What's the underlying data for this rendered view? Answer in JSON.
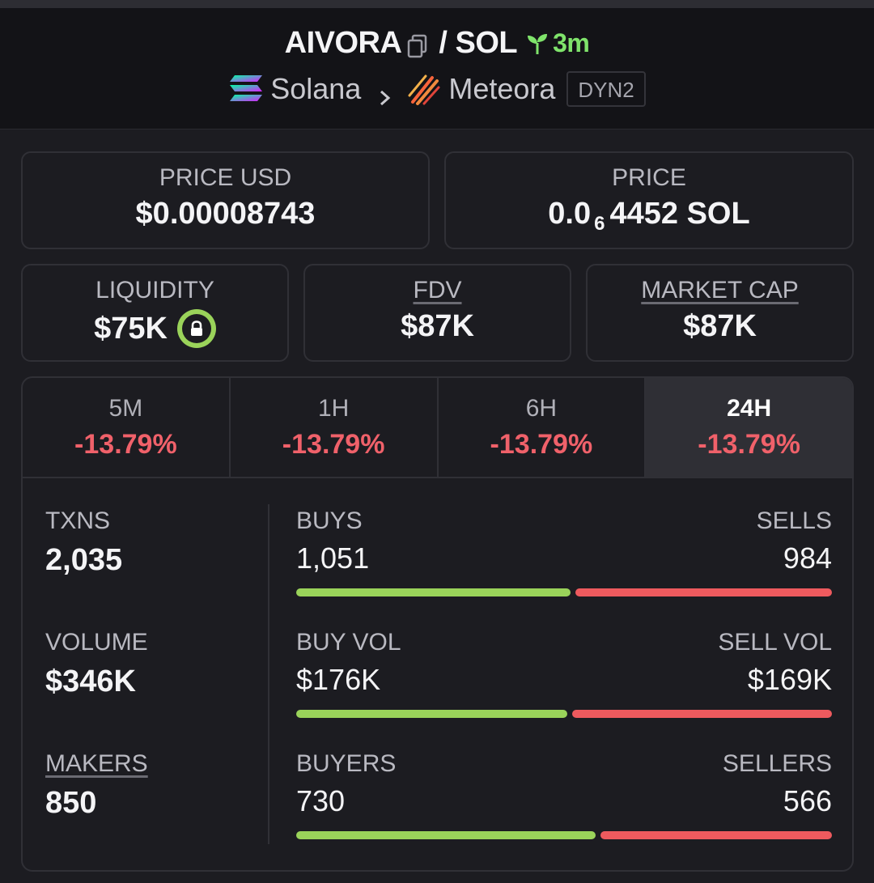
{
  "header": {
    "token": "AIVORA",
    "slash": "/",
    "quote": "SOL",
    "age": "3m",
    "chain": "Solana",
    "dex": "Meteora",
    "tag": "DYN2"
  },
  "price_usd": {
    "label": "PRICE USD",
    "value": "$0.00008743"
  },
  "price_native": {
    "label": "PRICE",
    "prefix": "0.0",
    "zeros": "6",
    "suffix": "4452 SOL"
  },
  "liquidity": {
    "label": "LIQUIDITY",
    "value": "$75K"
  },
  "fdv": {
    "label": "FDV",
    "value": "$87K"
  },
  "market_cap": {
    "label": "MARKET CAP",
    "value": "$87K"
  },
  "tabs": [
    {
      "label": "5M",
      "change": "-13.79%"
    },
    {
      "label": "1H",
      "change": "-13.79%"
    },
    {
      "label": "6H",
      "change": "-13.79%"
    },
    {
      "label": "24H",
      "change": "-13.79%",
      "active": true
    }
  ],
  "stats": {
    "txns": {
      "label": "TXNS",
      "value": "2,035"
    },
    "volume": {
      "label": "VOLUME",
      "value": "$346K"
    },
    "makers": {
      "label": "MAKERS",
      "value": "850"
    }
  },
  "pairs": {
    "txns": {
      "left_label": "BUYS",
      "right_label": "SELLS",
      "left_value": "1,051",
      "right_value": "984",
      "left_ratio": 0.5165
    },
    "volume": {
      "left_label": "BUY VOL",
      "right_label": "SELL VOL",
      "left_value": "$176K",
      "right_value": "$169K",
      "left_ratio": 0.5101
    },
    "makers": {
      "left_label": "BUYERS",
      "right_label": "SELLERS",
      "left_value": "730",
      "right_value": "566",
      "left_ratio": 0.5633
    }
  },
  "colors": {
    "positive": "#9ad35a",
    "negative": "#ee5a5e",
    "age": "#7fe36b",
    "background": "#1c1c21"
  }
}
